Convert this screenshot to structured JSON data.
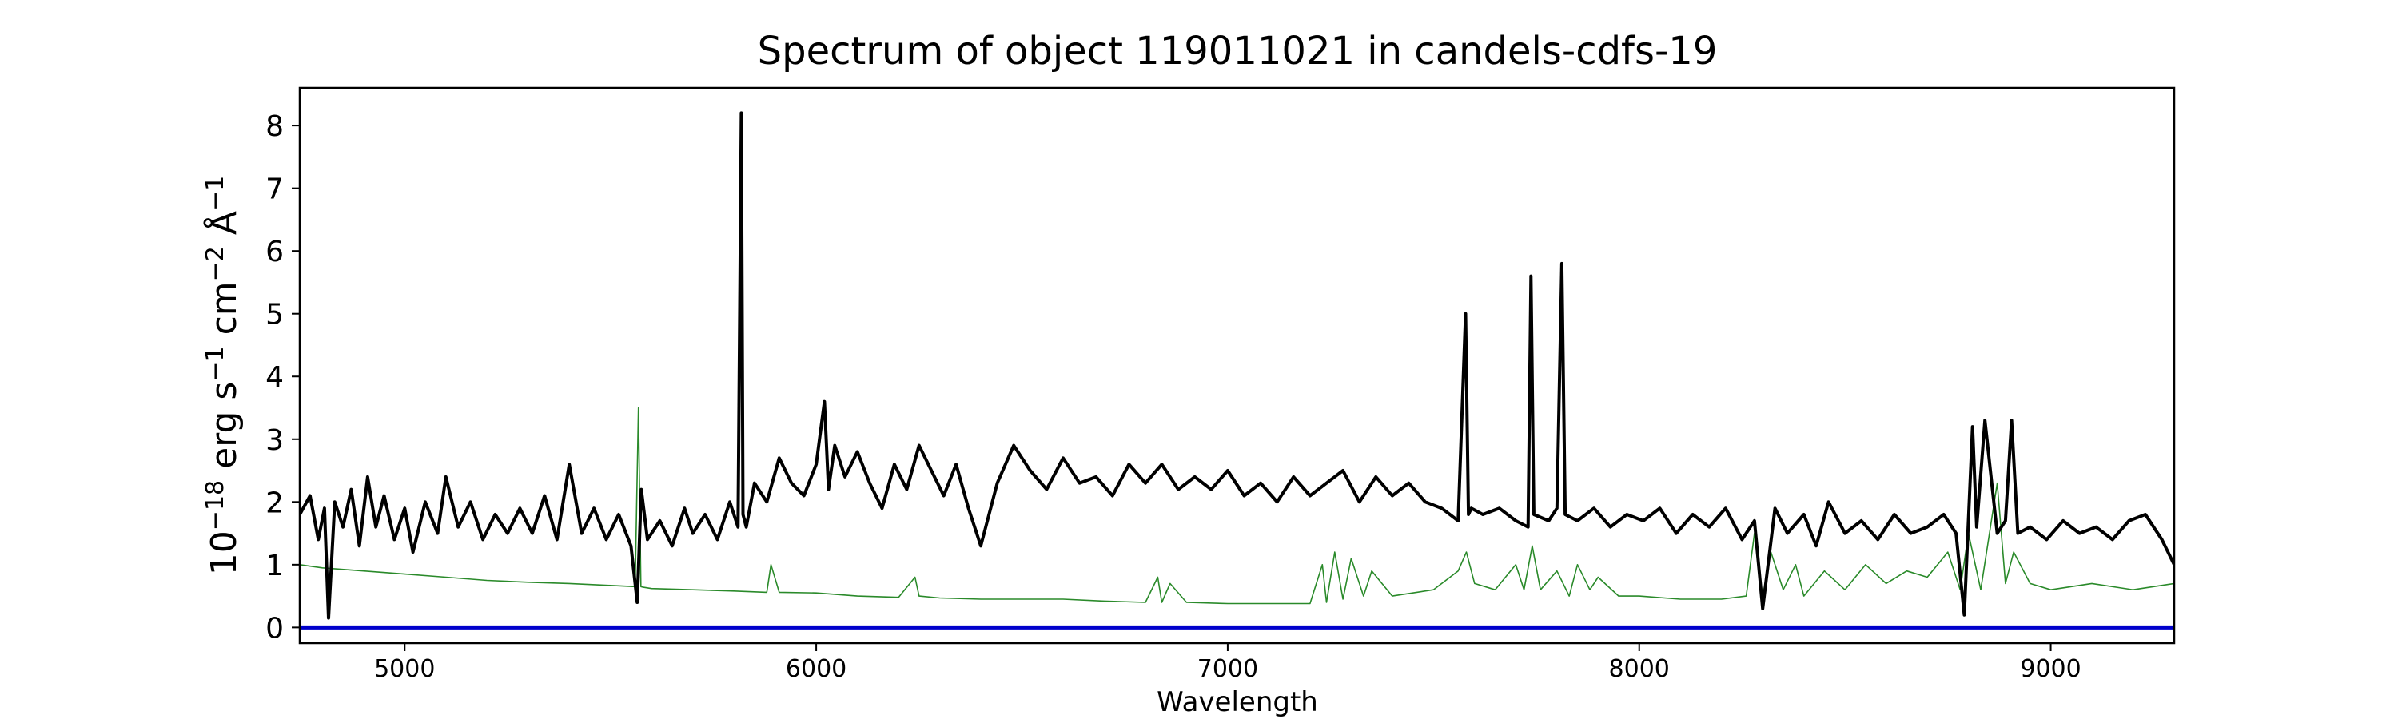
{
  "chart_data": {
    "type": "line",
    "title": "Spectrum of object 119011021 in candels-cdfs-19",
    "xlabel": "Wavelength",
    "ylabel": "10",
    "ylabel_parts": {
      "base": "10",
      "exp": "−18",
      "erg": " erg s",
      "s_exp": "−1",
      "cm": " cm",
      "cm_exp": "−2",
      "ang": " Å",
      "ang_exp": "−1"
    },
    "xlim": [
      4745,
      9300
    ],
    "ylim": [
      -0.25,
      8.6
    ],
    "x_ticks": [
      5000,
      6000,
      7000,
      8000,
      9000
    ],
    "y_ticks": [
      0,
      1,
      2,
      3,
      4,
      5,
      6,
      7,
      8
    ],
    "grid": false,
    "colors": {
      "flux": "#000000",
      "error": "#2a8a2a",
      "zero": "#0000cc"
    },
    "series": [
      {
        "role": "flux",
        "x": [
          4745,
          4770,
          4790,
          4805,
          4815,
          4830,
          4850,
          4870,
          4890,
          4910,
          4930,
          4950,
          4975,
          5000,
          5020,
          5050,
          5080,
          5100,
          5130,
          5160,
          5190,
          5220,
          5250,
          5280,
          5310,
          5340,
          5370,
          5400,
          5430,
          5460,
          5490,
          5520,
          5550,
          5565,
          5575,
          5590,
          5620,
          5650,
          5680,
          5700,
          5730,
          5760,
          5790,
          5810,
          5818,
          5822,
          5830,
          5850,
          5880,
          5910,
          5940,
          5970,
          6000,
          6020,
          6030,
          6045,
          6070,
          6100,
          6130,
          6160,
          6190,
          6220,
          6250,
          6280,
          6310,
          6340,
          6370,
          6400,
          6440,
          6480,
          6520,
          6560,
          6600,
          6640,
          6680,
          6720,
          6760,
          6800,
          6840,
          6880,
          6920,
          6960,
          7000,
          7040,
          7080,
          7120,
          7160,
          7200,
          7240,
          7280,
          7320,
          7360,
          7400,
          7440,
          7480,
          7520,
          7560,
          7578,
          7585,
          7592,
          7620,
          7660,
          7700,
          7730,
          7737,
          7744,
          7780,
          7800,
          7812,
          7820,
          7850,
          7890,
          7930,
          7970,
          8010,
          8050,
          8090,
          8130,
          8170,
          8210,
          8250,
          8280,
          8300,
          8330,
          8360,
          8400,
          8430,
          8460,
          8500,
          8540,
          8580,
          8620,
          8660,
          8700,
          8740,
          8770,
          8790,
          8810,
          8820,
          8840,
          8870,
          8890,
          8905,
          8920,
          8950,
          8990,
          9030,
          9070,
          9110,
          9150,
          9190,
          9230,
          9270,
          9300
        ],
        "y": [
          1.8,
          2.1,
          1.4,
          1.9,
          0.15,
          2.0,
          1.6,
          2.2,
          1.3,
          2.4,
          1.6,
          2.1,
          1.4,
          1.9,
          1.2,
          2.0,
          1.5,
          2.4,
          1.6,
          2.0,
          1.4,
          1.8,
          1.5,
          1.9,
          1.5,
          2.1,
          1.4,
          2.6,
          1.5,
          1.9,
          1.4,
          1.8,
          1.3,
          0.4,
          2.2,
          1.4,
          1.7,
          1.3,
          1.9,
          1.5,
          1.8,
          1.4,
          2.0,
          1.6,
          8.2,
          1.8,
          1.6,
          2.3,
          2.0,
          2.7,
          2.3,
          2.1,
          2.6,
          3.6,
          2.2,
          2.9,
          2.4,
          2.8,
          2.3,
          1.9,
          2.6,
          2.2,
          2.9,
          2.5,
          2.1,
          2.6,
          1.9,
          1.3,
          2.3,
          2.9,
          2.5,
          2.2,
          2.7,
          2.3,
          2.4,
          2.1,
          2.6,
          2.3,
          2.6,
          2.2,
          2.4,
          2.2,
          2.5,
          2.1,
          2.3,
          2.0,
          2.4,
          2.1,
          2.3,
          2.5,
          2.0,
          2.4,
          2.1,
          2.3,
          2.0,
          1.9,
          1.7,
          5.0,
          1.8,
          1.9,
          1.8,
          1.9,
          1.7,
          1.6,
          5.6,
          1.8,
          1.7,
          1.9,
          5.8,
          1.8,
          1.7,
          1.9,
          1.6,
          1.8,
          1.7,
          1.9,
          1.5,
          1.8,
          1.6,
          1.9,
          1.4,
          1.7,
          0.3,
          1.9,
          1.5,
          1.8,
          1.3,
          2.0,
          1.5,
          1.7,
          1.4,
          1.8,
          1.5,
          1.6,
          1.8,
          1.5,
          0.2,
          3.2,
          1.6,
          3.3,
          1.5,
          1.7,
          3.3,
          1.5,
          1.6,
          1.4,
          1.7,
          1.5,
          1.6,
          1.4,
          1.7,
          1.8,
          1.4,
          1.0
        ]
      },
      {
        "role": "error",
        "x": [
          4745,
          4800,
          4900,
          5000,
          5100,
          5200,
          5300,
          5400,
          5500,
          5560,
          5568,
          5574,
          5580,
          5600,
          5700,
          5800,
          5880,
          5890,
          5910,
          6000,
          6100,
          6200,
          6240,
          6250,
          6300,
          6400,
          6500,
          6600,
          6700,
          6800,
          6830,
          6840,
          6860,
          6900,
          7000,
          7100,
          7200,
          7230,
          7240,
          7260,
          7280,
          7300,
          7330,
          7350,
          7400,
          7500,
          7560,
          7580,
          7600,
          7650,
          7700,
          7720,
          7740,
          7760,
          7800,
          7830,
          7850,
          7880,
          7900,
          7950,
          8000,
          8100,
          8200,
          8260,
          8280,
          8300,
          8320,
          8350,
          8380,
          8400,
          8450,
          8500,
          8550,
          8600,
          8650,
          8700,
          8750,
          8780,
          8800,
          8830,
          8870,
          8890,
          8910,
          8950,
          9000,
          9100,
          9200,
          9300
        ],
        "y": [
          1.0,
          0.95,
          0.9,
          0.85,
          0.8,
          0.75,
          0.72,
          0.7,
          0.67,
          0.65,
          3.5,
          0.65,
          0.64,
          0.62,
          0.6,
          0.58,
          0.56,
          1.0,
          0.56,
          0.55,
          0.5,
          0.48,
          0.8,
          0.5,
          0.47,
          0.45,
          0.45,
          0.45,
          0.42,
          0.4,
          0.8,
          0.4,
          0.7,
          0.4,
          0.38,
          0.38,
          0.38,
          1.0,
          0.4,
          1.2,
          0.45,
          1.1,
          0.5,
          0.9,
          0.5,
          0.6,
          0.9,
          1.2,
          0.7,
          0.6,
          1.0,
          0.6,
          1.3,
          0.6,
          0.9,
          0.5,
          1.0,
          0.6,
          0.8,
          0.5,
          0.5,
          0.45,
          0.45,
          0.5,
          1.5,
          0.5,
          1.2,
          0.6,
          1.0,
          0.5,
          0.9,
          0.6,
          1.0,
          0.7,
          0.9,
          0.8,
          1.2,
          0.6,
          1.5,
          0.6,
          2.3,
          0.7,
          1.2,
          0.7,
          0.6,
          0.7,
          0.6,
          0.7
        ]
      },
      {
        "role": "zero",
        "x": [
          4745,
          9300
        ],
        "y": [
          0,
          0
        ]
      }
    ]
  }
}
